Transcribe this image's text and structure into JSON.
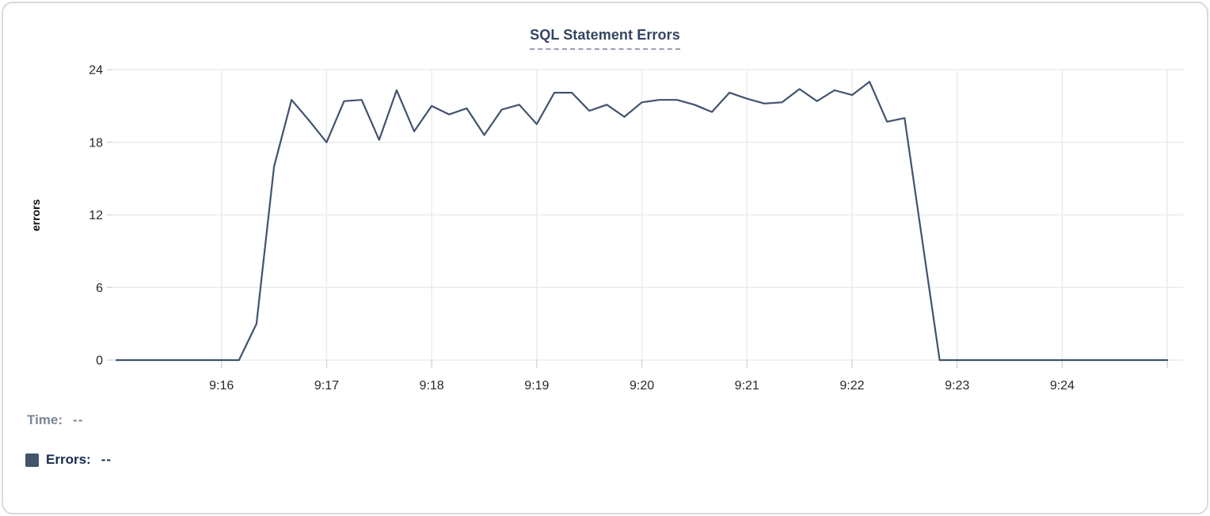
{
  "title": "SQL Statement Errors",
  "readout": {
    "time_label": "Time:",
    "time_value": "--",
    "errors_label": "Errors:",
    "errors_value": "--"
  },
  "colors": {
    "line": "#42526E",
    "swatch": "#44546F",
    "title": "#344563",
    "muted_gray": "#7A869A",
    "dark_navy": "#172B4D",
    "gridline": "#E9EBEE",
    "tick": "#D4D8DE",
    "axis_text": "#24292E",
    "card_border": "#D9D9D9"
  },
  "chart_data": {
    "type": "line",
    "title": "SQL Statement Errors",
    "xlabel": "",
    "ylabel": "errors",
    "ylim": [
      0,
      24
    ],
    "yticks": [
      0,
      6,
      12,
      18,
      24
    ],
    "xlim": [
      "9:15:00",
      "9:25:09"
    ],
    "grid": true,
    "legend_position": "bottom-left-readout",
    "xticks": [
      {
        "t": "9:16:00",
        "label": "9:16"
      },
      {
        "t": "9:17:00",
        "label": "9:17"
      },
      {
        "t": "9:18:00",
        "label": "9:18"
      },
      {
        "t": "9:19:00",
        "label": "9:19"
      },
      {
        "t": "9:20:00",
        "label": "9:20"
      },
      {
        "t": "9:21:00",
        "label": "9:21"
      },
      {
        "t": "9:22:00",
        "label": "9:22"
      },
      {
        "t": "9:23:00",
        "label": "9:23"
      },
      {
        "t": "9:24:00",
        "label": "9:24"
      },
      {
        "t": "9:25:00",
        "label": ""
      }
    ],
    "series": [
      {
        "name": "Errors",
        "color": "#42526E",
        "x": [
          "9:15:00",
          "9:15:10",
          "9:15:20",
          "9:15:30",
          "9:15:40",
          "9:15:50",
          "9:16:00",
          "9:16:10",
          "9:16:20",
          "9:16:30",
          "9:16:40",
          "9:16:50",
          "9:17:00",
          "9:17:10",
          "9:17:20",
          "9:17:30",
          "9:17:40",
          "9:17:50",
          "9:18:00",
          "9:18:10",
          "9:18:20",
          "9:18:30",
          "9:18:40",
          "9:18:50",
          "9:19:00",
          "9:19:10",
          "9:19:20",
          "9:19:30",
          "9:19:40",
          "9:19:50",
          "9:20:00",
          "9:20:10",
          "9:20:20",
          "9:20:30",
          "9:20:40",
          "9:20:50",
          "9:21:00",
          "9:21:10",
          "9:21:20",
          "9:21:30",
          "9:21:40",
          "9:21:50",
          "9:22:00",
          "9:22:10",
          "9:22:20",
          "9:22:30",
          "9:22:40",
          "9:22:50",
          "9:23:00",
          "9:23:10",
          "9:23:20",
          "9:23:30",
          "9:23:40",
          "9:23:50",
          "9:24:00",
          "9:24:10",
          "9:24:20",
          "9:24:30",
          "9:24:40",
          "9:24:50",
          "9:25:00"
        ],
        "values": [
          0,
          0,
          0,
          0,
          0,
          0,
          0,
          0,
          3,
          16,
          21.5,
          19.8,
          18,
          21.4,
          21.5,
          18.2,
          22.3,
          18.9,
          21,
          20.3,
          20.8,
          18.6,
          20.7,
          21.1,
          19.5,
          22.1,
          22.1,
          20.6,
          21.1,
          20.1,
          21.3,
          21.5,
          21.5,
          21.1,
          20.5,
          22.1,
          21.6,
          21.2,
          21.3,
          22.4,
          21.4,
          22.3,
          21.9,
          23,
          19.7,
          20,
          10,
          0,
          0,
          0,
          0,
          0,
          0,
          0,
          0,
          0,
          0,
          0,
          0,
          0,
          0
        ]
      }
    ]
  }
}
